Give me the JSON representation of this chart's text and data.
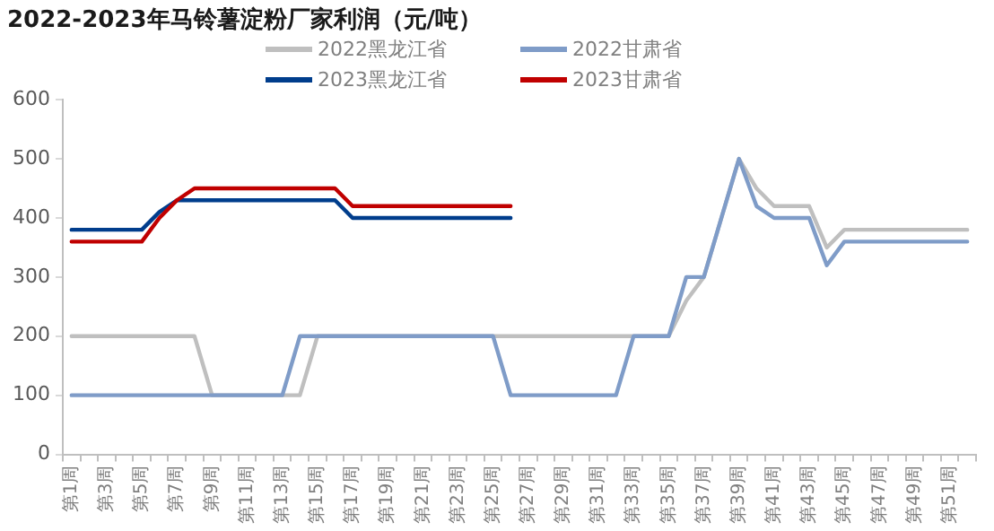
{
  "chart_data": {
    "type": "line",
    "title": "2022-2023年马铃薯淀粉厂家利润（元/吨）",
    "categories": [
      "第1周",
      null,
      "第3周",
      null,
      "第5周",
      null,
      "第7周",
      null,
      "第9周",
      null,
      "第11周",
      null,
      "第13周",
      null,
      "第15周",
      null,
      "第17周",
      null,
      "第19周",
      null,
      "第21周",
      null,
      "第23周",
      null,
      "第25周",
      null,
      "第27周",
      null,
      "第29周",
      null,
      "第31周",
      null,
      "第33周",
      null,
      "第35周",
      null,
      "第37周",
      null,
      "第39周",
      null,
      "第41周",
      null,
      "第43周",
      null,
      "第45周",
      null,
      "第47周",
      null,
      "第49周",
      null,
      "第51周",
      null
    ],
    "series": [
      {
        "name": "2022黑龙江省",
        "color": "#bfbfbf",
        "values": [
          200,
          200,
          200,
          200,
          200,
          200,
          200,
          200,
          100,
          100,
          100,
          100,
          100,
          100,
          200,
          200,
          200,
          200,
          200,
          200,
          200,
          200,
          200,
          200,
          200,
          200,
          200,
          200,
          200,
          200,
          200,
          200,
          200,
          200,
          200,
          260,
          300,
          400,
          500,
          450,
          420,
          420,
          420,
          350,
          380,
          380,
          380,
          380,
          380,
          380,
          380,
          380
        ]
      },
      {
        "name": "2022甘肃省",
        "color": "#7f9cc8",
        "values": [
          100,
          100,
          100,
          100,
          100,
          100,
          100,
          100,
          100,
          100,
          100,
          100,
          100,
          200,
          200,
          200,
          200,
          200,
          200,
          200,
          200,
          200,
          200,
          200,
          200,
          100,
          100,
          100,
          100,
          100,
          100,
          100,
          200,
          200,
          200,
          300,
          300,
          400,
          500,
          420,
          400,
          400,
          400,
          320,
          360,
          360,
          360,
          360,
          360,
          360,
          360,
          360
        ]
      },
      {
        "name": "2023黑龙江省",
        "color": "#003d8c",
        "values": [
          380,
          380,
          380,
          380,
          380,
          410,
          430,
          430,
          430,
          430,
          430,
          430,
          430,
          430,
          430,
          430,
          400,
          400,
          400,
          400,
          400,
          400,
          400,
          400,
          400,
          400,
          null,
          null,
          null,
          null,
          null,
          null,
          null,
          null,
          null,
          null,
          null,
          null,
          null,
          null,
          null,
          null,
          null,
          null,
          null,
          null,
          null,
          null,
          null,
          null,
          null,
          null
        ]
      },
      {
        "name": "2023甘肃省",
        "color": "#c00000",
        "values": [
          360,
          360,
          360,
          360,
          360,
          400,
          430,
          450,
          450,
          450,
          450,
          450,
          450,
          450,
          450,
          450,
          420,
          420,
          420,
          420,
          420,
          420,
          420,
          420,
          420,
          420,
          null,
          null,
          null,
          null,
          null,
          null,
          null,
          null,
          null,
          null,
          null,
          null,
          null,
          null,
          null,
          null,
          null,
          null,
          null,
          null,
          null,
          null,
          null,
          null,
          null,
          null
        ]
      }
    ],
    "ylim": [
      0,
      600
    ],
    "yticks": [
      0,
      100,
      200,
      300,
      400,
      500,
      600
    ],
    "grid": false,
    "legend": "top",
    "marker": "none",
    "line_style": "solid"
  }
}
